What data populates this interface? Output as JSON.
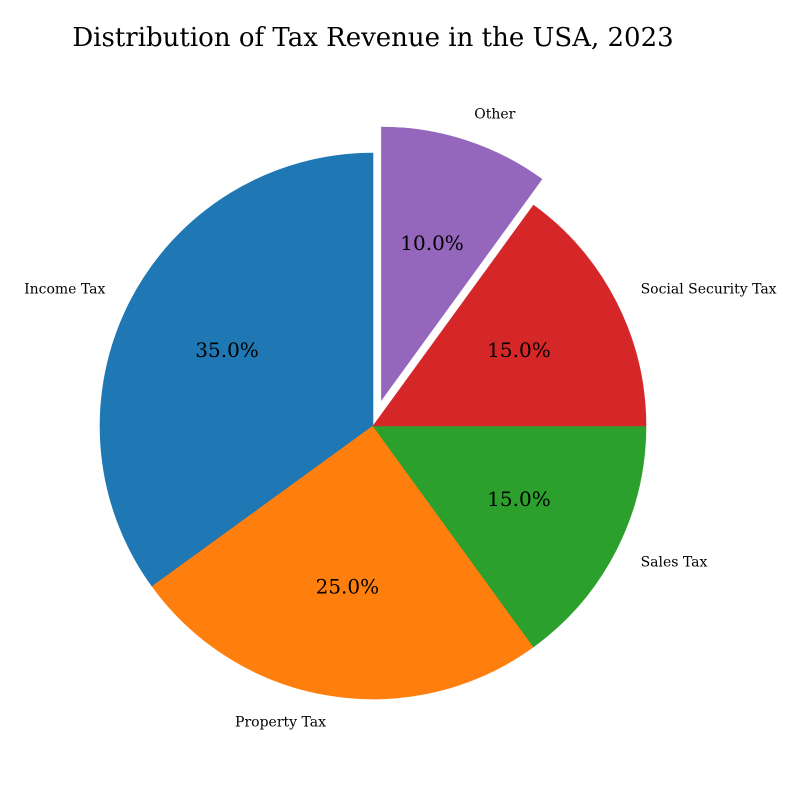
{
  "chart_data": {
    "type": "pie",
    "title": "Distribution of Tax Revenue in the USA, 2023",
    "slices": [
      {
        "label": "Income Tax",
        "value": 35.0,
        "pct_label": "35.0%",
        "color": "#1f77b4",
        "explode": 0
      },
      {
        "label": "Property Tax",
        "value": 25.0,
        "pct_label": "25.0%",
        "color": "#ff7f0e",
        "explode": 0
      },
      {
        "label": "Sales Tax",
        "value": 15.0,
        "pct_label": "15.0%",
        "color": "#2ca02c",
        "explode": 0
      },
      {
        "label": "Social Security Tax",
        "value": 15.0,
        "pct_label": "15.0%",
        "color": "#d62728",
        "explode": 0
      },
      {
        "label": "Other",
        "value": 10.0,
        "pct_label": "10.0%",
        "color": "#9467bd",
        "explode": 0.1
      }
    ],
    "start_angle": 90,
    "direction": "counterclockwise",
    "legend": "none"
  }
}
